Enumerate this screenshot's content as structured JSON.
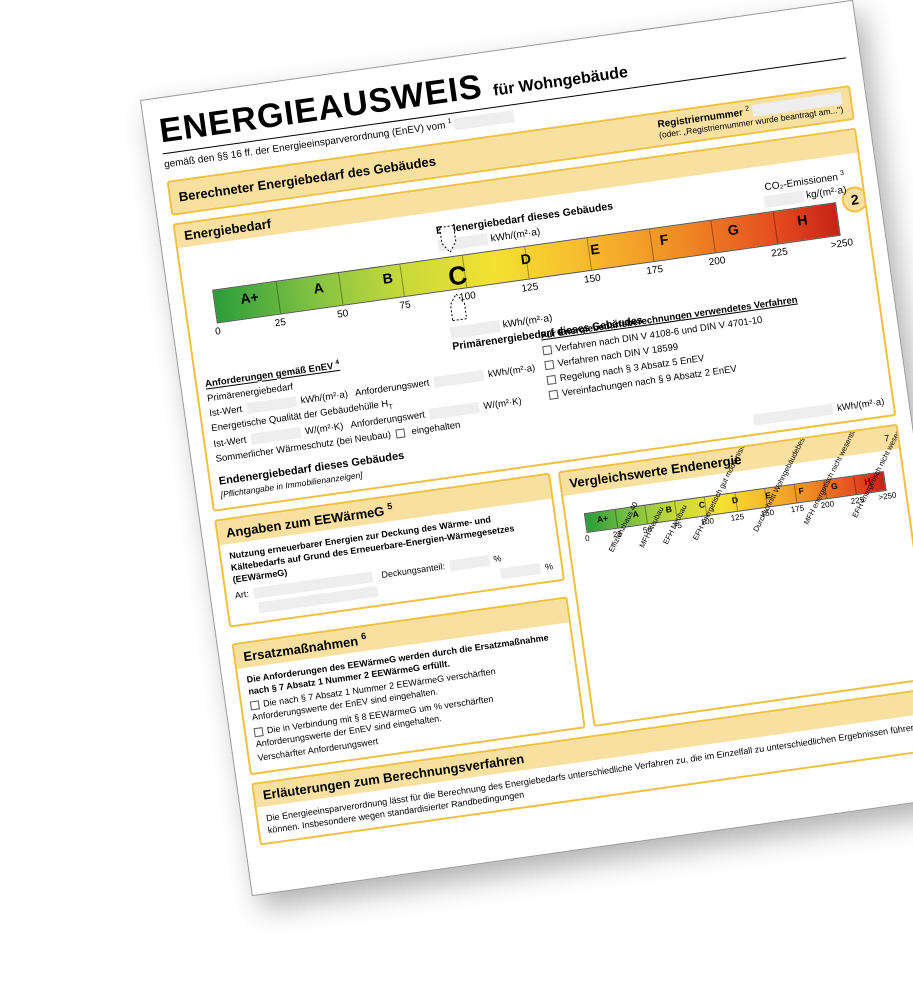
{
  "title": {
    "main": "ENERGIEAUSWEIS",
    "sub": "für Wohngebäude"
  },
  "subtitle": "gemäß den §§ 16 ff. der Energieeinsparverordnung (EnEV) vom",
  "subtitle_footnote": "1",
  "pageNumber": "2",
  "s1": {
    "heading": "Berechneter Energiebedarf des Gebäudes",
    "reg_label": "Registriernummer",
    "reg_footnote": "2",
    "reg_note": "(oder: „Registriernummer wurde beantragt am...\")"
  },
  "s2": {
    "heading": "Energiebedarf",
    "co2_label": "CO₂-Emissionen",
    "co2_footnote": "3",
    "co2_unit": "kg/(m²·a)",
    "top_label": "Endenergiebedarf dieses Gebäudes",
    "bot_label": "Primärenergiebedarf dieses Gebäudes",
    "unit": "kWh/(m²·a)",
    "scale": {
      "classes": [
        "A+",
        "A",
        "B",
        "C",
        "D",
        "E",
        "F",
        "G",
        "H"
      ],
      "ticks": [
        "0",
        "25",
        "50",
        "75",
        "100",
        "125",
        "150",
        "175",
        "200",
        "225",
        ">250"
      ],
      "seg_pcts": [
        10,
        20,
        30,
        40,
        50,
        60,
        70,
        80,
        90
      ],
      "current_index": 3,
      "pointer_pct": 36,
      "colors": {
        "start": "#2a9d3a",
        "mid": "#f4e131",
        "end": "#c72217"
      }
    },
    "req_head": "Anforderungen gemäß EnEV",
    "req_footnote": "4",
    "left": {
      "l1": "Primärenergiebedarf",
      "l1a": "Ist-Wert",
      "u1": "kWh/(m²·a)",
      "l1b": "Anforderungswert",
      "u1b": "kWh/(m²·a)",
      "l2": "Energetische Qualität der Gebäudehülle H",
      "l2a": "Ist-Wert",
      "u2": "W/(m²·K)",
      "l2b": "Anforderungswert",
      "u2b": "W/(m²·K)",
      "l3": "Sommerlicher Wärmeschutz (bei Neubau)",
      "l3a": "eingehalten"
    },
    "proc_head": "Für Energiebedarfsberechnungen verwendetes Verfahren",
    "proc": [
      "Verfahren nach DIN V 4108-6 und DIN V 4701-10",
      "Verfahren nach DIN V 18599",
      "Regelung nach § 3 Absatz 5 EnEV",
      "Vereinfachungen nach § 9 Absatz 2 EnEV"
    ],
    "end_head": "Endenergiebedarf dieses Gebäudes",
    "end_note": "[Pflichtangabe in Immobilienanzeigen]",
    "end_unit": "kWh/(m²·a)"
  },
  "s3": {
    "heading": "Angaben zum EEWärmeG",
    "heading_footnote": "5",
    "intro": "Nutzung erneuerbarer Energien zur Deckung des Wärme- und Kältebedarfs auf Grund des Erneuerbare-Energien-Wärmegesetzes (EEWärmeG)",
    "art": "Art:",
    "deck": "Deckungsanteil:",
    "pct": "%"
  },
  "s4": {
    "heading": "Ersatzmaßnahmen",
    "heading_footnote": "6",
    "intro": "Die Anforderungen des EEWärmeG werden durch die Ersatzmaßnahme nach § 7 Absatz 1 Nummer 2 EEWärmeG erfüllt.",
    "c1": "Die nach § 7 Absatz 1 Nummer 2 EEWärmeG verschärften Anforderungswerte der EnEV sind eingehalten.",
    "c2": "Die in Verbindung mit § 8 EEWärmeG um           % verschärften Anforderungswerte der EnEV sind eingehalten.",
    "c3": "Verschärfter Anforderungswert"
  },
  "s5": {
    "heading": "Vergleichswerte Endenergie",
    "scale": {
      "classes": [
        "A+",
        "A",
        "B",
        "C",
        "D",
        "E",
        "F",
        "G",
        "H"
      ],
      "ticks": [
        "0",
        "25",
        "50",
        "75",
        "100",
        "125",
        "150",
        "175",
        "200",
        "225",
        ">250"
      ],
      "seg_pcts": [
        10,
        20,
        30,
        40,
        50,
        60,
        70,
        80,
        90
      ]
    },
    "labels": [
      {
        "t": "Effizienzhaus 40",
        "p": 7
      },
      {
        "t": "MFH Neubau",
        "p": 17
      },
      {
        "t": "EFH Neubau",
        "p": 25
      },
      {
        "t": "EFH energetisch gut modernisiert",
        "p": 35
      },
      {
        "t": "Durchschnitt Wohngebäudebestand",
        "p": 55
      },
      {
        "t": "MFH energetisch nicht wesentlich modernisiert",
        "p": 72
      },
      {
        "t": "EFH energetisch nicht wesentlich modernisiert",
        "p": 88
      }
    ],
    "footnote": "7"
  },
  "s6": {
    "heading": "Erläuterungen zum Berechnungsverfahren",
    "text": "Die Energieeinsparverordnung lässt für die Berechnung des Energiebedarfs unterschiedliche Verfahren zu, die im Einzelfall zu unterschiedlichen Ergebnissen führen können. Insbesondere wegen standardisierter Randbedingungen"
  }
}
